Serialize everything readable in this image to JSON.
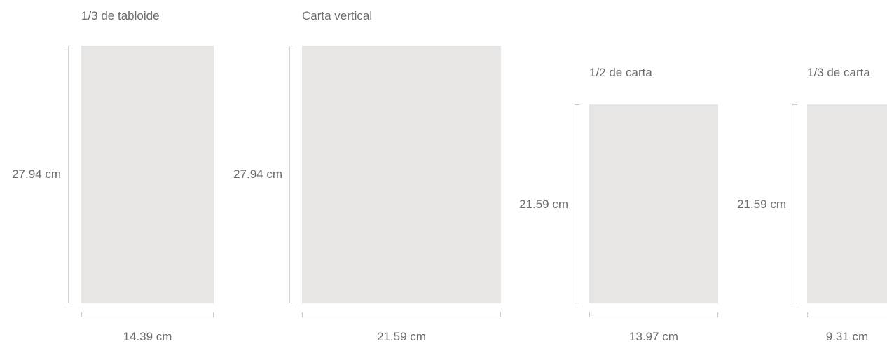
{
  "formats": [
    {
      "title": "1/3 de tabloide",
      "height_label": "27.94 cm",
      "width_label": "14.39 cm"
    },
    {
      "title": "Carta vertical",
      "height_label": "27.94 cm",
      "width_label": "21.59 cm"
    },
    {
      "title": "1/2 de carta",
      "height_label": "21.59 cm",
      "width_label": "13.97 cm"
    },
    {
      "title": "1/3 de carta",
      "height_label": "21.59 cm",
      "width_label": "9.31 cm"
    }
  ],
  "colors": {
    "sheet": "#e8e6e4",
    "dimension_line": "#d4d4d4",
    "text": "#6c6c6c"
  }
}
